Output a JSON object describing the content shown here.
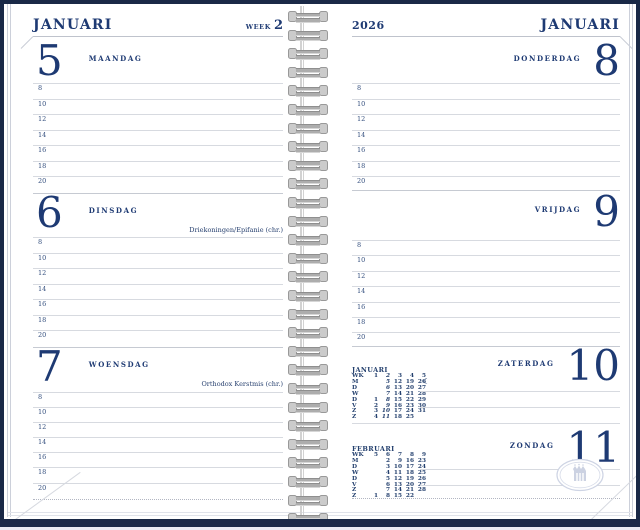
{
  "week": {
    "label": "WEEK",
    "number": "2"
  },
  "left_page": {
    "month": "JANUARI",
    "days": [
      {
        "number": "5",
        "name": "MAANDAG",
        "holiday": "",
        "hours": [
          "8",
          "10",
          "12",
          "14",
          "16",
          "18",
          "20"
        ]
      },
      {
        "number": "6",
        "name": "DINSDAG",
        "holiday": "Driekoningen/Epifanie (chr.)",
        "hours": [
          "8",
          "10",
          "12",
          "14",
          "16",
          "18",
          "20"
        ]
      },
      {
        "number": "7",
        "name": "WOENSDAG",
        "holiday": "Orthodox Kerstmis (chr.)",
        "hours": [
          "8",
          "10",
          "12",
          "14",
          "16",
          "18",
          "20"
        ]
      }
    ]
  },
  "right_page": {
    "year": "2026",
    "month": "JANUARI",
    "days": [
      {
        "number": "8",
        "name": "DONDERDAG",
        "hours": [
          "8",
          "10",
          "12",
          "14",
          "16",
          "18",
          "20"
        ]
      },
      {
        "number": "9",
        "name": "VRIJDAG",
        "hours": [
          "8",
          "10",
          "12",
          "14",
          "16",
          "18",
          "20"
        ]
      },
      {
        "number": "10",
        "name": "ZATERDAG"
      },
      {
        "number": "11",
        "name": "ZONDAG"
      }
    ],
    "moon_icon": "☾",
    "mini_calendars": [
      {
        "title": "JANUARI",
        "highlight_col": 1,
        "rows": [
          {
            "label": "WK",
            "cells": [
              "1",
              "2",
              "3",
              "4",
              "5"
            ]
          },
          {
            "label": "M",
            "cells": [
              "",
              "5",
              "12",
              "19",
              "26"
            ]
          },
          {
            "label": "D",
            "cells": [
              "",
              "6",
              "13",
              "20",
              "27"
            ]
          },
          {
            "label": "W",
            "cells": [
              "",
              "7",
              "14",
              "21",
              "28"
            ]
          },
          {
            "label": "D",
            "cells": [
              "1",
              "8",
              "15",
              "22",
              "29"
            ]
          },
          {
            "label": "V",
            "cells": [
              "2",
              "9",
              "16",
              "23",
              "30"
            ]
          },
          {
            "label": "Z",
            "cells": [
              "3",
              "10",
              "17",
              "24",
              "31"
            ]
          },
          {
            "label": "Z",
            "cells": [
              "4",
              "11",
              "18",
              "25",
              ""
            ]
          }
        ]
      },
      {
        "title": "FEBRUARI",
        "highlight_col": -1,
        "rows": [
          {
            "label": "WK",
            "cells": [
              "5",
              "6",
              "7",
              "8",
              "9"
            ]
          },
          {
            "label": "M",
            "cells": [
              "",
              "2",
              "9",
              "16",
              "23"
            ]
          },
          {
            "label": "D",
            "cells": [
              "",
              "3",
              "10",
              "17",
              "24"
            ]
          },
          {
            "label": "W",
            "cells": [
              "",
              "4",
              "11",
              "18",
              "25"
            ]
          },
          {
            "label": "D",
            "cells": [
              "",
              "5",
              "12",
              "19",
              "26"
            ]
          },
          {
            "label": "V",
            "cells": [
              "",
              "6",
              "13",
              "20",
              "27"
            ]
          },
          {
            "label": "Z",
            "cells": [
              "",
              "7",
              "14",
              "21",
              "28"
            ]
          },
          {
            "label": "Z",
            "cells": [
              "1",
              "8",
              "15",
              "22",
              ""
            ]
          }
        ]
      }
    ]
  },
  "colors": {
    "navy": "#1e3a73",
    "cover": "#1a2947",
    "line": "#d7dae0",
    "watermark": "#ccd2e3"
  }
}
